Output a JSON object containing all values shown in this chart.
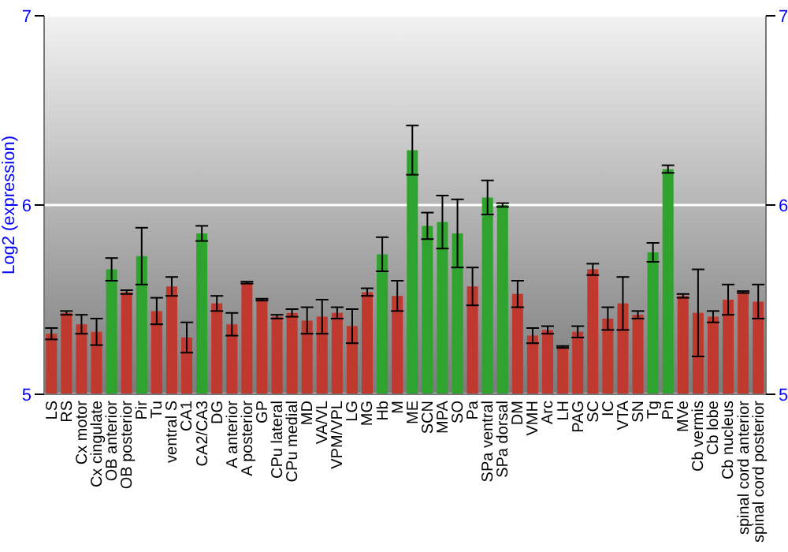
{
  "chart_data": {
    "type": "bar",
    "ylabel": "Log2 (expression)",
    "categories": [
      "LS",
      "RS",
      "Cx motor",
      "Cx cingulate",
      "OB anterior",
      "OB posterior",
      "Pir",
      "Tu",
      "ventral S",
      "CA1",
      "CA2/CA3",
      "DG",
      "A anterior",
      "A posterior",
      "GP",
      "CPu lateral",
      "CPu medial",
      "MD",
      "VA/VL",
      "VPM/VPL",
      "LG",
      "MG",
      "Hb",
      "M",
      "ME",
      "SCN",
      "MPA",
      "SO",
      "Pa",
      "SPa ventral",
      "SPa dorsal",
      "DM",
      "VMH",
      "Arc",
      "LH",
      "PAG",
      "SC",
      "IC",
      "VTA",
      "SN",
      "Tg",
      "Pn",
      "MVe",
      "Cb vermis",
      "Cb lobe",
      "Cb nucleus",
      "spinal cord anterior",
      "spinal cord posterior"
    ],
    "values": [
      5.32,
      5.43,
      5.37,
      5.33,
      5.66,
      5.54,
      5.73,
      5.44,
      5.57,
      5.3,
      5.85,
      5.48,
      5.37,
      5.59,
      5.5,
      5.41,
      5.43,
      5.39,
      5.41,
      5.43,
      5.36,
      5.54,
      5.74,
      5.52,
      6.29,
      5.89,
      5.91,
      5.85,
      5.57,
      6.04,
      6.0,
      5.53,
      5.31,
      5.34,
      5.25,
      5.33,
      5.66,
      5.4,
      5.48,
      5.42,
      5.75,
      6.19,
      5.52,
      5.43,
      5.41,
      5.5,
      5.54,
      5.49
    ],
    "errors": [
      0.03,
      0.01,
      0.05,
      0.07,
      0.06,
      0.01,
      0.15,
      0.07,
      0.05,
      0.08,
      0.04,
      0.04,
      0.06,
      0.005,
      0.005,
      0.01,
      0.02,
      0.07,
      0.09,
      0.03,
      0.09,
      0.02,
      0.09,
      0.08,
      0.13,
      0.07,
      0.14,
      0.18,
      0.1,
      0.09,
      0.01,
      0.07,
      0.04,
      0.02,
      0.005,
      0.03,
      0.03,
      0.06,
      0.14,
      0.02,
      0.05,
      0.02,
      0.01,
      0.23,
      0.03,
      0.08,
      0.005,
      0.09
    ],
    "colors": [
      "#c0392f",
      "#c0392f",
      "#c0392f",
      "#c0392f",
      "#2ea32e",
      "#c0392f",
      "#2ea32e",
      "#c0392f",
      "#c0392f",
      "#c0392f",
      "#2ea32e",
      "#c0392f",
      "#c0392f",
      "#c0392f",
      "#c0392f",
      "#c0392f",
      "#c0392f",
      "#c0392f",
      "#c0392f",
      "#c0392f",
      "#c0392f",
      "#c0392f",
      "#2ea32e",
      "#c0392f",
      "#2ea32e",
      "#2ea32e",
      "#2ea32e",
      "#2ea32e",
      "#c0392f",
      "#2ea32e",
      "#2ea32e",
      "#c0392f",
      "#c0392f",
      "#c0392f",
      "#c0392f",
      "#c0392f",
      "#c0392f",
      "#c0392f",
      "#c0392f",
      "#c0392f",
      "#2ea32e",
      "#2ea32e",
      "#c0392f",
      "#c0392f",
      "#c0392f",
      "#c0392f",
      "#c0392f",
      "#c0392f"
    ],
    "ylim": [
      5,
      7
    ],
    "yticks": [
      5,
      6,
      7
    ],
    "y2lim": [
      5,
      7
    ],
    "y2ticks": [
      5,
      6,
      7
    ],
    "grid": "y"
  }
}
